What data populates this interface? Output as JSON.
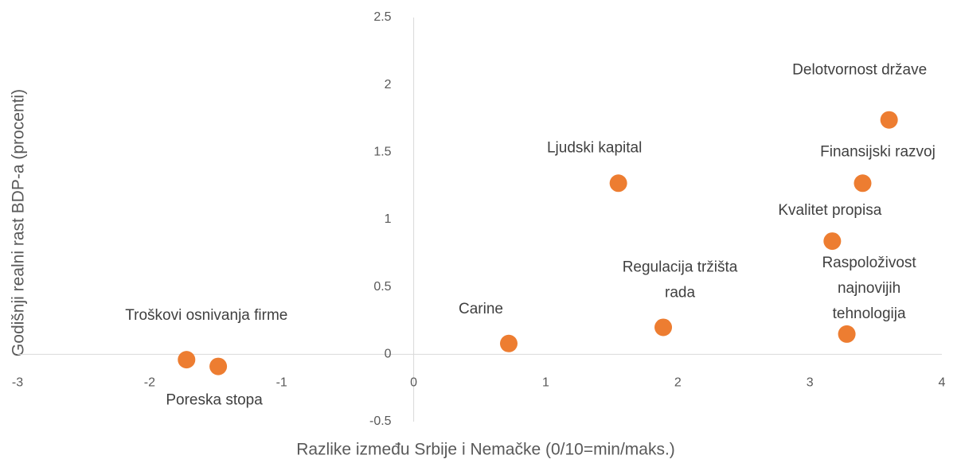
{
  "chart_data": {
    "type": "scatter",
    "x_label": "Razlike između Srbije i Nemačke (0/10=min/maks.)",
    "y_label": "Godišnji realni rast BDP-a (procenti)",
    "series": [
      {
        "color": "#ED7D31",
        "labels": [
          "Delotvornost države",
          "Finansijski razvoj",
          "Ljudski kapital",
          "Kvalitet propisa",
          "Raspoloživost\nnajnovijih\ntehnologija",
          "Regulacija tržišta\nrada",
          "Carine",
          "Troškovi osnivanja firme",
          "Poreska stopa"
        ],
        "x": [
          3.6,
          3.4,
          1.55,
          3.17,
          3.28,
          1.89,
          0.72,
          -1.72,
          -1.48
        ],
        "values": [
          1.74,
          1.27,
          1.27,
          0.84,
          0.15,
          0.2,
          0.08,
          -0.04,
          -0.09
        ]
      }
    ],
    "xlim": [
      -3,
      4
    ],
    "xticks": [
      -3,
      -2,
      -1,
      0,
      1,
      2,
      3,
      4
    ],
    "ylim": [
      -0.5,
      2.5
    ],
    "yticks": [
      -0.5,
      0,
      0.5,
      1,
      1.5,
      2,
      2.5
    ],
    "grid": false
  }
}
